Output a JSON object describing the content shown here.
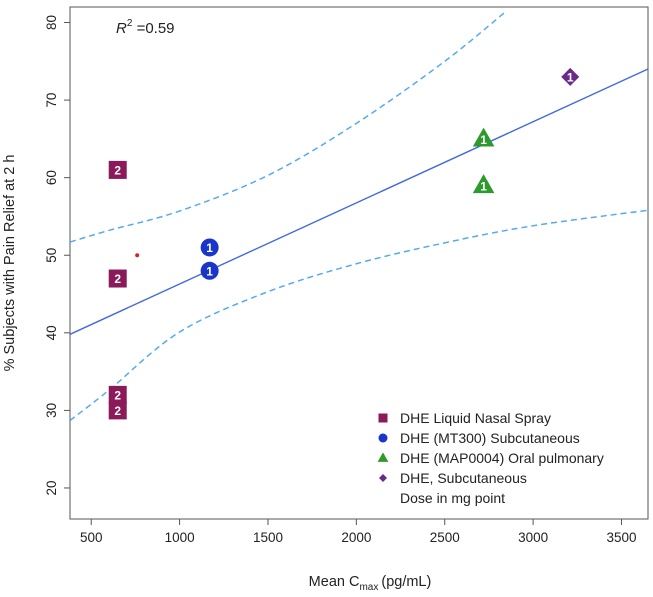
{
  "chart_data": {
    "type": "scatter",
    "xlabel": "Mean C",
    "xlabel_sub": "max",
    "xlabel_units": "(pg/mL)",
    "ylabel": "% Subjects with Pain Relief at 2 h",
    "xlim": [
      380,
      3650
    ],
    "ylim": [
      16,
      82
    ],
    "xticks": [
      500,
      1000,
      1500,
      2000,
      2500,
      3000,
      3500
    ],
    "yticks": [
      20,
      30,
      40,
      50,
      60,
      70,
      80
    ],
    "r2_label": "R",
    "r2_sup": "2",
    "r2_value": " =0.59",
    "fit_line": {
      "slope": 0.01046,
      "intercept": 35.83,
      "color": "#4169e1"
    },
    "confidence_band": {
      "color": "#55aaee",
      "upper": [
        [
          380,
          51.7
        ],
        [
          600,
          53.2
        ],
        [
          1000,
          55.7
        ],
        [
          1500,
          60.3
        ],
        [
          2000,
          67.0
        ],
        [
          2500,
          75.0
        ],
        [
          2850,
          81.5
        ]
      ],
      "lower": [
        [
          380,
          28.7
        ],
        [
          600,
          32.6
        ],
        [
          1000,
          40.1
        ],
        [
          1500,
          45.3
        ],
        [
          2000,
          48.9
        ],
        [
          2500,
          51.6
        ],
        [
          3000,
          53.8
        ],
        [
          3650,
          55.8
        ]
      ]
    },
    "series": [
      {
        "name": "DHE Liquid Nasal Spray",
        "marker": "square",
        "color": "#8b1a5a",
        "points": [
          {
            "x": 650,
            "y": 61,
            "dose": "2"
          },
          {
            "x": 650,
            "y": 47,
            "dose": "2"
          },
          {
            "x": 650,
            "y": 32,
            "dose": "2"
          },
          {
            "x": 650,
            "y": 30,
            "dose": "2"
          }
        ]
      },
      {
        "name": "DHE (MT300) Subcutaneous",
        "marker": "circle",
        "color": "#1a35c9",
        "points": [
          {
            "x": 1170,
            "y": 51,
            "dose": "1"
          },
          {
            "x": 1170,
            "y": 48,
            "dose": "1"
          }
        ]
      },
      {
        "name": "DHE (MAP0004) Oral pulmonary",
        "marker": "triangle",
        "color": "#2e9a2e",
        "points": [
          {
            "x": 2720,
            "y": 65,
            "dose": "1"
          },
          {
            "x": 2720,
            "y": 59,
            "dose": "1"
          }
        ]
      },
      {
        "name": "DHE, Subcutaneous",
        "marker": "diamond",
        "color": "#6a2a8c",
        "points": [
          {
            "x": 3210,
            "y": 73,
            "dose": "1"
          }
        ]
      }
    ],
    "extra_point": {
      "x": 760,
      "y": 50,
      "color": "#e02020"
    },
    "legend": {
      "position": "bottom-right",
      "entries": [
        {
          "label": "DHE Liquid Nasal Spray",
          "marker": "square",
          "color": "#8b1a5a"
        },
        {
          "label": "DHE (MT300) Subcutaneous",
          "marker": "circle",
          "color": "#1a35c9"
        },
        {
          "label": "DHE (MAP0004) Oral pulmonary",
          "marker": "triangle",
          "color": "#2e9a2e"
        },
        {
          "label": "DHE, Subcutaneous",
          "marker": "diamond",
          "color": "#6a2a8c"
        }
      ],
      "note": "Dose in mg point"
    }
  }
}
